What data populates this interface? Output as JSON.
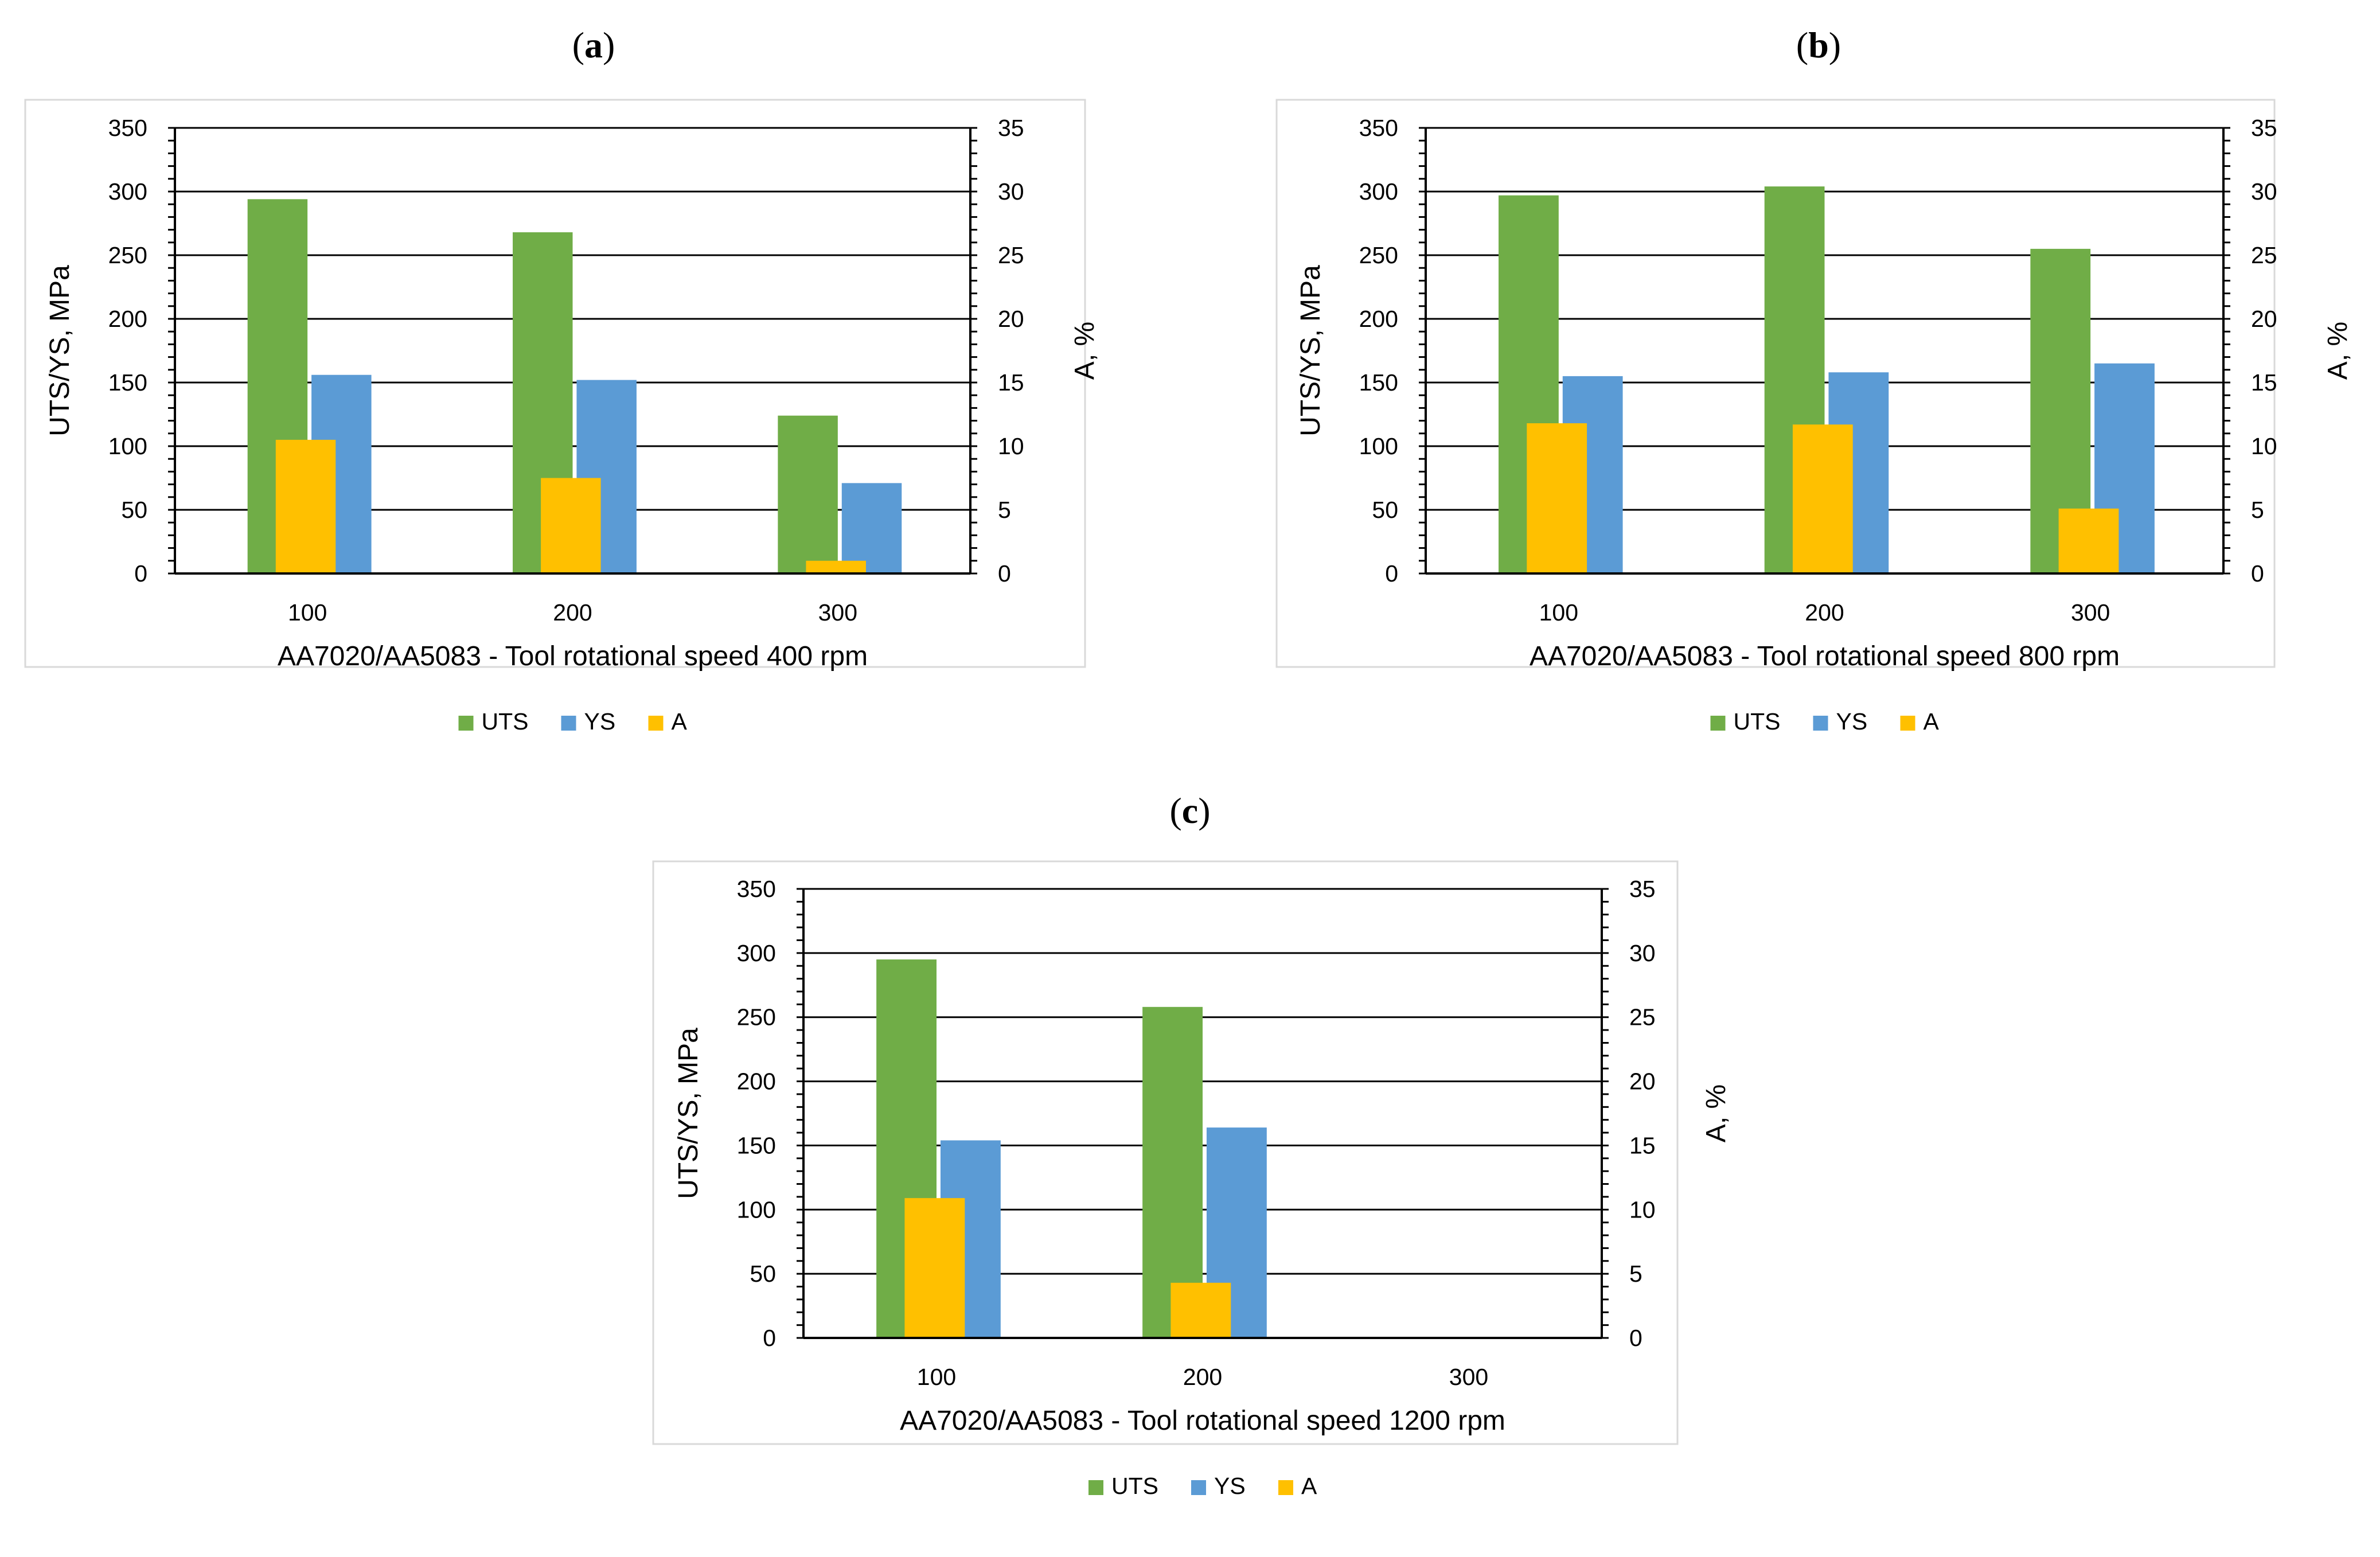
{
  "colors": {
    "UTS": "#70AD47",
    "YS": "#5B9BD5",
    "A": "#FFC000",
    "grid": "#000000",
    "frame": "#D9D9D9",
    "text": "#000000"
  },
  "legend": [
    {
      "key": "UTS",
      "label": "UTS"
    },
    {
      "key": "YS",
      "label": "YS"
    },
    {
      "key": "A",
      "label": "A"
    }
  ],
  "chart_data": [
    {
      "type": "bar",
      "panel": "a",
      "title": "",
      "panel_label_open": "(",
      "panel_label_close": ")",
      "xlabel": "AA7020/AA5083 - Tool rotational speed 400 rpm",
      "ylabel": "UTS/YS, MPa",
      "y2label": "A, %",
      "categories": [
        "100",
        "200",
        "300"
      ],
      "ylim": [
        0,
        350
      ],
      "yticks": [
        "0",
        "50",
        "100",
        "150",
        "200",
        "250",
        "300",
        "350"
      ],
      "y2lim": [
        0,
        35
      ],
      "y2ticks": [
        "0",
        "5",
        "10",
        "15",
        "20",
        "25",
        "30",
        "35"
      ],
      "series": [
        {
          "name": "UTS",
          "axis": "left",
          "values": [
            294,
            268,
            124
          ]
        },
        {
          "name": "YS",
          "axis": "left",
          "values": [
            156,
            152,
            71
          ]
        },
        {
          "name": "A",
          "axis": "right",
          "values": [
            10.5,
            7.5,
            1.0
          ]
        }
      ]
    },
    {
      "type": "bar",
      "panel": "b",
      "title": "",
      "panel_label_open": "(",
      "panel_label_close": ")",
      "xlabel": "AA7020/AA5083 - Tool rotational speed 800 rpm",
      "ylabel": "UTS/YS, MPa",
      "y2label": "A, %",
      "categories": [
        "100",
        "200",
        "300"
      ],
      "ylim": [
        0,
        350
      ],
      "yticks": [
        "0",
        "50",
        "100",
        "150",
        "200",
        "250",
        "300",
        "350"
      ],
      "y2lim": [
        0,
        35
      ],
      "y2ticks": [
        "0",
        "5",
        "10",
        "15",
        "20",
        "25",
        "30",
        "35"
      ],
      "series": [
        {
          "name": "UTS",
          "axis": "left",
          "values": [
            297,
            304,
            255
          ]
        },
        {
          "name": "YS",
          "axis": "left",
          "values": [
            155,
            158,
            165
          ]
        },
        {
          "name": "A",
          "axis": "right",
          "values": [
            11.8,
            11.7,
            5.1
          ]
        }
      ]
    },
    {
      "type": "bar",
      "panel": "c",
      "title": "",
      "panel_label_open": "(",
      "panel_label_close": ")",
      "xlabel": "AA7020/AA5083 - Tool rotational speed 1200 rpm",
      "ylabel": "UTS/YS, MPa",
      "y2label": "A, %",
      "categories": [
        "100",
        "200",
        "300"
      ],
      "ylim": [
        0,
        350
      ],
      "yticks": [
        "0",
        "50",
        "100",
        "150",
        "200",
        "250",
        "300",
        "350"
      ],
      "y2lim": [
        0,
        35
      ],
      "y2ticks": [
        "0",
        "5",
        "10",
        "15",
        "20",
        "25",
        "30",
        "35"
      ],
      "series": [
        {
          "name": "UTS",
          "axis": "left",
          "values": [
            295,
            258,
            0
          ]
        },
        {
          "name": "YS",
          "axis": "left",
          "values": [
            154,
            164,
            0
          ]
        },
        {
          "name": "A",
          "axis": "right",
          "values": [
            10.9,
            4.3,
            0
          ]
        }
      ]
    }
  ]
}
